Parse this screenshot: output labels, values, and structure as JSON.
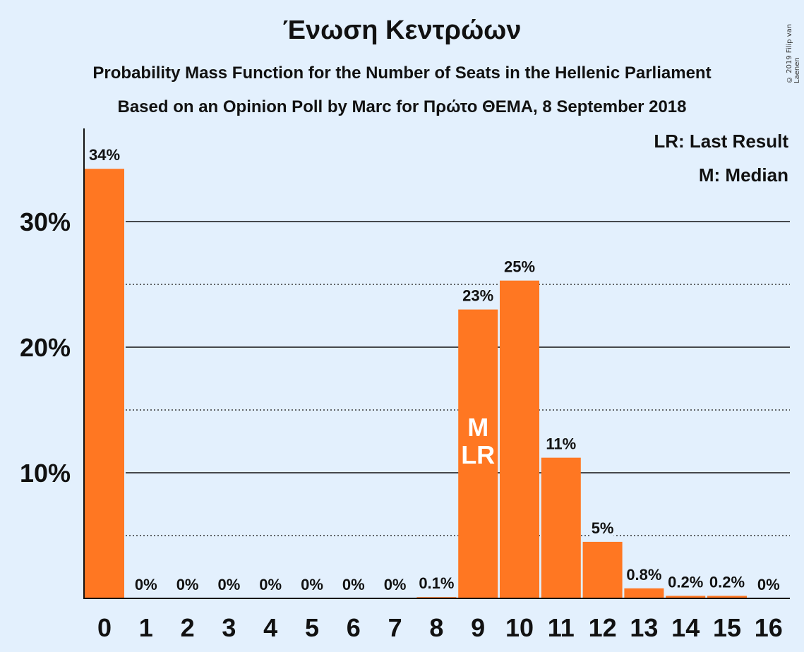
{
  "title": "Ένωση Κεντρώων",
  "subtitle": "Probability Mass Function for the Number of Seats in the Hellenic Parliament",
  "subtitle2": "Based on an Opinion Poll by Marc for Πρώτο ΘΕΜΑ, 8 September 2018",
  "copyright": "© 2019 Filip van Laenen",
  "legend": {
    "last_result": "LR: Last Result",
    "median": "M: Median"
  },
  "colors": {
    "background": "#e3f0fd",
    "bar": "#ff7722",
    "bar_label_inside": "#ffffff"
  },
  "chart_data": {
    "type": "bar",
    "categories": [
      "0",
      "1",
      "2",
      "3",
      "4",
      "5",
      "6",
      "7",
      "8",
      "9",
      "10",
      "11",
      "12",
      "13",
      "14",
      "15",
      "16"
    ],
    "values": [
      34.2,
      0,
      0,
      0,
      0,
      0,
      0,
      0,
      0.1,
      23.0,
      25.3,
      11.2,
      4.5,
      0.8,
      0.2,
      0.2,
      0
    ],
    "data_labels": [
      "34%",
      "0%",
      "0%",
      "0%",
      "0%",
      "0%",
      "0%",
      "0%",
      "0.1%",
      "23%",
      "25%",
      "11%",
      "5%",
      "0.8%",
      "0.2%",
      "0.2%",
      "0%"
    ],
    "y_ticks": [
      {
        "value": 10,
        "label": "10%"
      },
      {
        "value": 20,
        "label": "20%"
      },
      {
        "value": 30,
        "label": "30%"
      }
    ],
    "minor_gridlines": [
      5,
      15,
      25
    ],
    "ylim": [
      0,
      37.3
    ],
    "bar_annotations": [
      {
        "category": "9",
        "lines": [
          "M",
          "LR"
        ]
      }
    ],
    "xlabel": "",
    "ylabel": "",
    "grid": true,
    "legend_position": "top-right"
  }
}
